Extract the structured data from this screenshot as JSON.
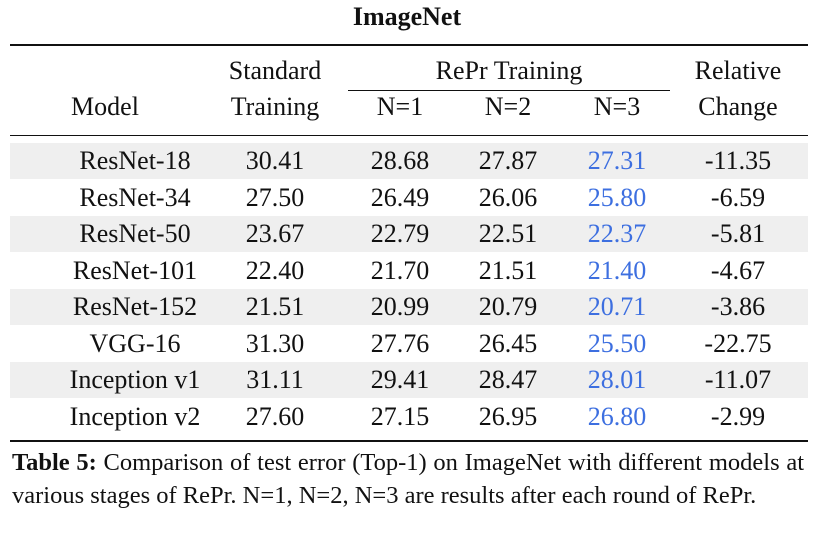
{
  "title": "ImageNet",
  "headers": {
    "model": "Model",
    "standard_line1": "Standard",
    "standard_line2": "Training",
    "repr": "RePr Training",
    "n1": "N=1",
    "n2": "N=2",
    "n3": "N=3",
    "relative_line1": "Relative",
    "relative_line2": "Change"
  },
  "rows": [
    {
      "model": "ResNet-18",
      "standard": "30.41",
      "n1": "28.68",
      "n2": "27.87",
      "n3": "27.31",
      "change": "-11.35"
    },
    {
      "model": "ResNet-34",
      "standard": "27.50",
      "n1": "26.49",
      "n2": "26.06",
      "n3": "25.80",
      "change": "-6.59"
    },
    {
      "model": "ResNet-50",
      "standard": "23.67",
      "n1": "22.79",
      "n2": "22.51",
      "n3": "22.37",
      "change": "-5.81"
    },
    {
      "model": "ResNet-101",
      "standard": "22.40",
      "n1": "21.70",
      "n2": "21.51",
      "n3": "21.40",
      "change": "-4.67"
    },
    {
      "model": "ResNet-152",
      "standard": "21.51",
      "n1": "20.99",
      "n2": "20.79",
      "n3": "20.71",
      "change": "-3.86"
    },
    {
      "model": "VGG-16",
      "standard": "31.30",
      "n1": "27.76",
      "n2": "26.45",
      "n3": "25.50",
      "change": "-22.75"
    },
    {
      "model": "Inception v1",
      "standard": "31.11",
      "n1": "29.41",
      "n2": "28.47",
      "n3": "28.01",
      "change": "-11.07"
    },
    {
      "model": "Inception v2",
      "standard": "27.60",
      "n1": "27.15",
      "n2": "26.95",
      "n3": "26.80",
      "change": "-2.99"
    }
  ],
  "caption": {
    "label": "Table 5:",
    "text": "Comparison of test error (Top-1) on ImageNet with different models at various stages of RePr. N=1, N=2, N=3 are results after each round of RePr."
  },
  "colors": {
    "highlight": "#3d6fe0",
    "stripe": "#efefef"
  }
}
